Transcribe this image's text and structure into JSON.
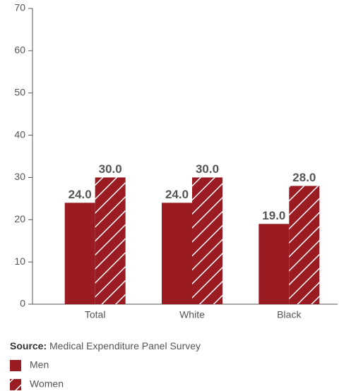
{
  "chart_data": {
    "type": "bar",
    "categories": [
      "Total",
      "White",
      "Black"
    ],
    "series": [
      {
        "name": "Men",
        "color": "#9b1b23",
        "hatch": false,
        "values": [
          24,
          24,
          19
        ],
        "value_labels": [
          "24.0",
          "24.0",
          "19.0"
        ]
      },
      {
        "name": "Women",
        "color": "#9b1b23",
        "hatch": true,
        "values": [
          30,
          30,
          28
        ],
        "value_labels": [
          "30.0",
          "30.0",
          "28.0"
        ]
      }
    ],
    "ylim": [
      0,
      70
    ],
    "yticks": [
      0,
      10,
      20,
      30,
      40,
      50,
      60,
      70
    ],
    "source_label": "Source:",
    "source": "Medical Expenditure Panel Survey"
  }
}
